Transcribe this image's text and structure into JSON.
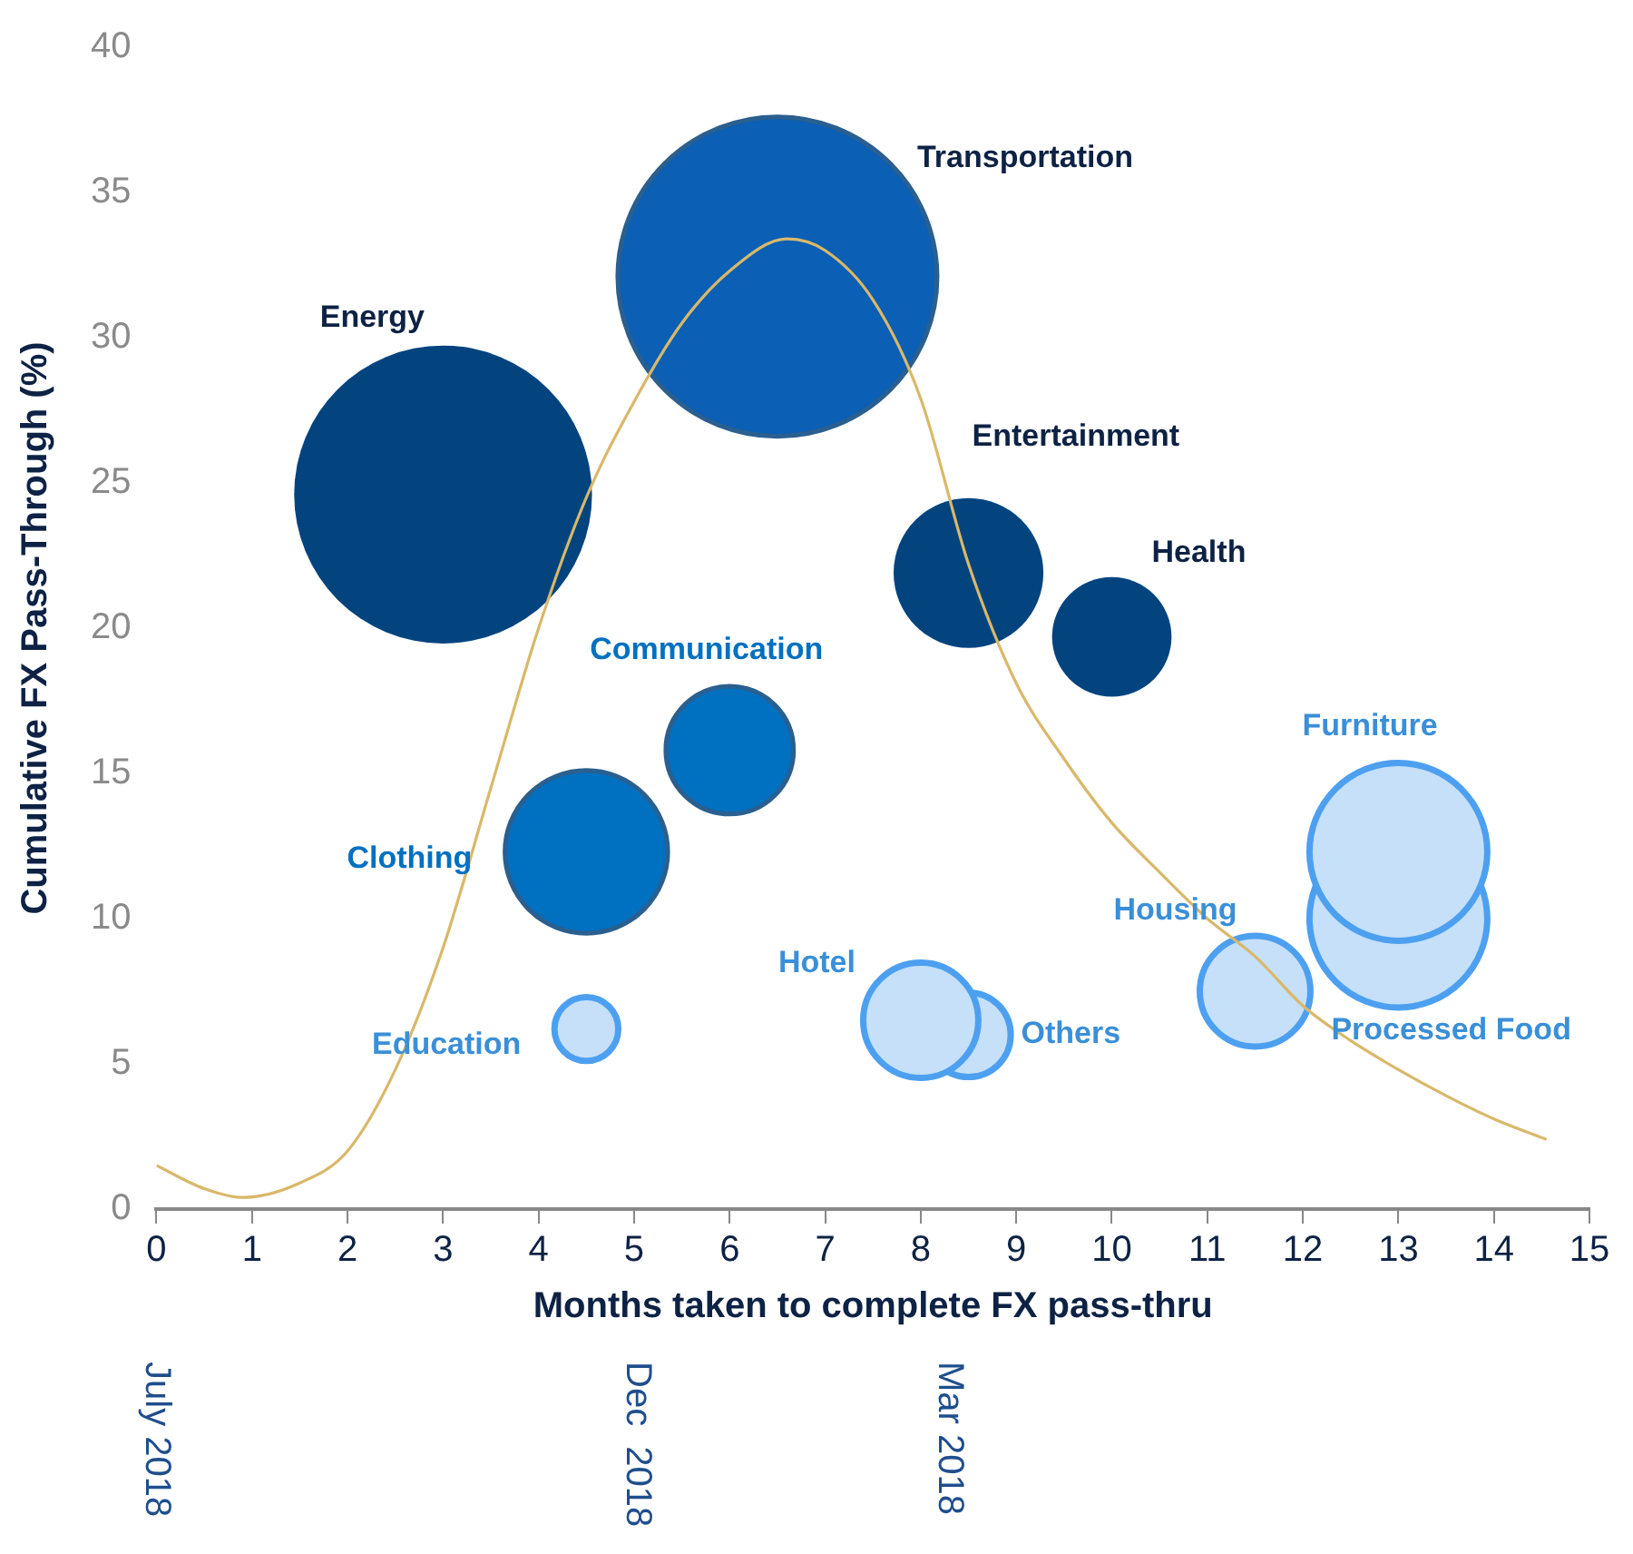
{
  "chart_data": {
    "type": "bubble",
    "xlabel": "Months taken to complete FX pass-thru",
    "ylabel": "Cumulative FX Pass-Through (%)",
    "xlim": [
      0,
      15
    ],
    "xticks": [
      0,
      1,
      2,
      3,
      4,
      5,
      6,
      7,
      8,
      9,
      10,
      11,
      12,
      13,
      14,
      15
    ],
    "ylim": [
      0,
      40
    ],
    "yticks": [
      0,
      5,
      10,
      15,
      20,
      25,
      30,
      35,
      40
    ],
    "grid": false,
    "legend": false,
    "series": [
      {
        "name": "Energy",
        "color": "#03447f",
        "x": [
          3
        ],
        "values": [
          24.6
        ],
        "sizes": [
          0.87
        ]
      },
      {
        "name": "Transportation",
        "color": "#0b5fb4",
        "x": [
          6.5
        ],
        "values": [
          32.1
        ],
        "sizes": [
          1
        ]
      },
      {
        "name": "Entertainment",
        "color": "#03447f",
        "x": [
          8.5
        ],
        "values": [
          21.9
        ],
        "sizes": [
          0.22
        ]
      },
      {
        "name": "Health",
        "color": "#03447f",
        "x": [
          10
        ],
        "values": [
          19.7
        ],
        "sizes": [
          0.14
        ]
      },
      {
        "name": "Communication",
        "color": "#0070c0",
        "x": [
          6
        ],
        "values": [
          15.8
        ],
        "sizes": [
          0.16
        ]
      },
      {
        "name": "Clothing",
        "color": "#0070c0",
        "x": [
          4.5
        ],
        "values": [
          12.3
        ],
        "sizes": [
          0.26
        ]
      },
      {
        "name": "Education",
        "color": "#c5e0f8",
        "x": [
          4.5
        ],
        "values": [
          6.2
        ],
        "sizes": [
          0.04
        ]
      },
      {
        "name": "Hotel",
        "color": "#c5e0f8",
        "x": [
          8
        ],
        "values": [
          6.5
        ],
        "sizes": [
          0.13
        ]
      },
      {
        "name": "Others",
        "color": "#c5e0f8",
        "x": [
          8.5
        ],
        "values": [
          6.0
        ],
        "sizes": [
          0.07
        ]
      },
      {
        "name": "Housing",
        "color": "#c5e0f8",
        "x": [
          11.5
        ],
        "values": [
          7.5
        ],
        "sizes": [
          0.12
        ]
      },
      {
        "name": "Furniture",
        "color": "#c5e0f8",
        "x": [
          13
        ],
        "values": [
          12.3
        ],
        "sizes": [
          0.31
        ]
      },
      {
        "name": "Processed Food",
        "color": "#c5e0f8",
        "x": [
          13
        ],
        "values": [
          10.0
        ],
        "sizes": [
          0.31
        ]
      },
      {
        "type": "line",
        "color": "#d9b86a",
        "x": [
          0,
          0.5,
          0.9,
          1.5,
          2,
          2.5,
          3,
          3.5,
          4,
          4.5,
          5,
          5.5,
          6,
          6.6,
          7,
          7.5,
          8,
          8.5,
          9,
          9.5,
          10,
          10.5,
          11,
          11.5,
          12,
          12.5,
          13,
          13.5,
          14,
          14.55
        ],
        "values": [
          1.5,
          0.7,
          0.4,
          0.9,
          2.0,
          4.8,
          9.0,
          14.5,
          20.0,
          24.5,
          27.8,
          30.5,
          32.3,
          33.4,
          33.0,
          31.3,
          27.9,
          22.2,
          18.1,
          15.5,
          13.3,
          11.6,
          10.0,
          8.7,
          7.0,
          5.8,
          4.8,
          3.9,
          3.1,
          2.4
        ]
      }
    ],
    "annotations": [
      "July 2018",
      "Dec  2018",
      "Mar 2018"
    ]
  }
}
